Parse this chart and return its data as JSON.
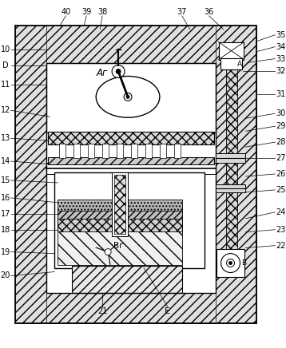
{
  "bg_color": "#ffffff",
  "line_color": "#000000",
  "text_AG": "Аг",
  "text_BG": "Вг",
  "text_A": "А",
  "text_B": "В",
  "text_D": "D",
  "text_E": "E",
  "fs": 7.0
}
